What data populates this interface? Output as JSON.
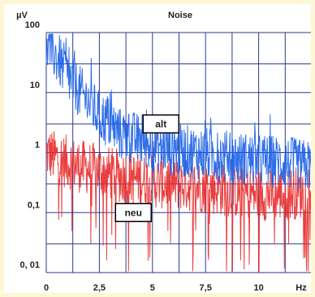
{
  "chart_data": {
    "type": "line",
    "title": "Noise",
    "ylabel": "µV",
    "xlabel": "Hz",
    "xlim": [
      0,
      12.5
    ],
    "ylim": [
      0.01,
      100
    ],
    "yscale": "log",
    "x_ticks": [
      0,
      2.5,
      5,
      7.5,
      10
    ],
    "x_tick_labels": [
      "0",
      "2,5",
      "5",
      "7,5",
      "10"
    ],
    "y_ticks": [
      100,
      10,
      1,
      0.1,
      0.01
    ],
    "y_tick_labels": [
      "100",
      "10",
      "1",
      "0,1",
      "0, 01"
    ],
    "grid": true,
    "series": [
      {
        "name": "alt",
        "color": "#1a5fe6",
        "label_position": [
          5.4,
          3.0
        ],
        "x": [
          0,
          0.1,
          0.2,
          0.35,
          0.5,
          0.7,
          1.0,
          1.3,
          1.6,
          2.0,
          2.5,
          3.0,
          3.5,
          4.0,
          5.0,
          6.0,
          7.0,
          8.0,
          9.0,
          10.0,
          11.0,
          12.0,
          12.5
        ],
        "values": [
          25,
          75,
          55,
          45,
          38,
          30,
          18,
          14,
          10,
          7,
          4,
          3,
          2,
          1.8,
          1.3,
          1.1,
          1.0,
          0.9,
          0.8,
          0.75,
          0.7,
          0.6,
          0.6
        ]
      },
      {
        "name": "neu",
        "color": "#e82a2a",
        "label_position": [
          4.1,
          0.1
        ],
        "x": [
          0,
          0.5,
          1.0,
          1.5,
          2.0,
          2.5,
          3.0,
          3.5,
          4.0,
          5.0,
          6.0,
          7.0,
          8.0,
          9.0,
          10.0,
          11.0,
          12.0,
          12.5
        ],
        "values": [
          1.0,
          0.8,
          0.7,
          0.6,
          0.55,
          0.5,
          0.45,
          0.4,
          0.38,
          0.33,
          0.3,
          0.28,
          0.25,
          0.22,
          0.2,
          0.2,
          0.22,
          0.25
        ]
      }
    ]
  }
}
